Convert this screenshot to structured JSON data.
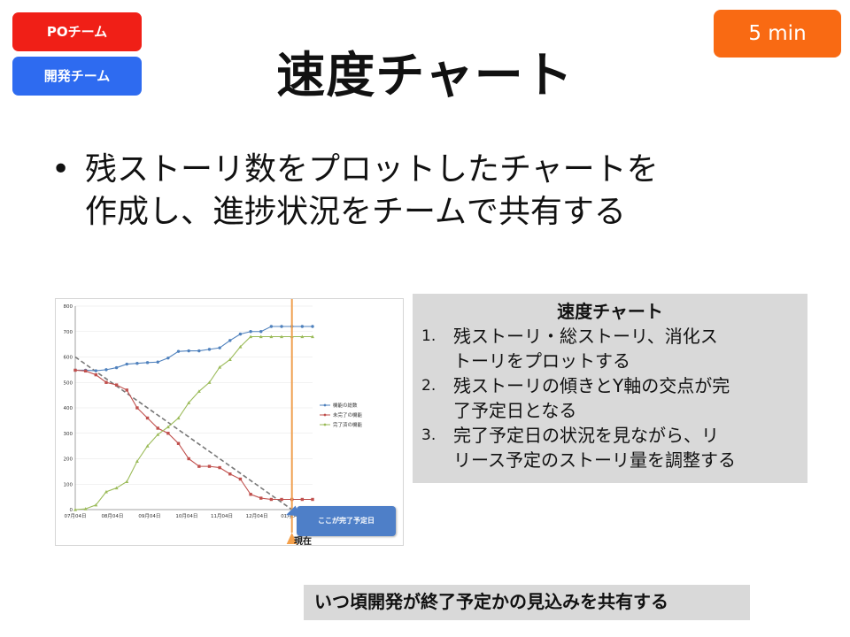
{
  "tags": {
    "po": "POチーム",
    "dev": "開発チーム"
  },
  "timer": "5 min",
  "title": "速度チャート",
  "bullet": {
    "line1": "残ストーリ数をプロットしたチャートを",
    "line2": "作成し、進捗状況をチームで共有する"
  },
  "info_box": {
    "title": "速度チャート",
    "items": [
      {
        "num": "1.",
        "line1": "残ストーリ・総ストーリ、消化ス",
        "line2": "トーリをプロットする"
      },
      {
        "num": "2.",
        "line1": "残ストーリの傾きとY軸の交点が完",
        "line2": "了予定日となる"
      },
      {
        "num": "3.",
        "line1": "完了予定日の状況を見ながら、リ",
        "line2": "リース予定のストーリ量を調整する"
      }
    ]
  },
  "bottom_note": "いつ頃開発が終了予定かの見込みを共有する",
  "callout": "ここが完了予定日",
  "now_label": "現在",
  "colors": {
    "po": "#f01f17",
    "dev": "#2e6bf0",
    "timer": "#f96a13",
    "now_line": "#f0a050"
  },
  "chart_data": {
    "type": "line",
    "ylim": [
      0,
      800
    ],
    "yticks": [
      "0",
      "100",
      "200",
      "300",
      "400",
      "500",
      "600",
      "700",
      "800"
    ],
    "xticks": [
      "07月04日",
      "08月04日",
      "09月04日",
      "10月04日",
      "11月04日",
      "12月04日",
      "01月04日"
    ],
    "xlim": [
      0,
      23
    ],
    "tick_positions": [
      0,
      3.6,
      7.2,
      10.8,
      14.2,
      17.6,
      21
    ],
    "now_x": 21,
    "series": [
      {
        "name": "機能の総数",
        "color": "#4f81bd",
        "marker": "circle",
        "x": [
          0,
          1,
          2,
          3,
          4,
          5,
          6,
          7,
          8,
          9,
          10,
          11,
          12,
          13,
          14,
          15,
          16,
          17,
          18,
          19,
          20,
          21,
          22,
          23
        ],
        "y": [
          548,
          548,
          546,
          550,
          558,
          572,
          575,
          578,
          580,
          596,
          622,
          624,
          624,
          630,
          636,
          665,
          690,
          700,
          700,
          720,
          720,
          720,
          720,
          720
        ]
      },
      {
        "name": "未完了の機能",
        "color": "#c0504d",
        "marker": "square",
        "x": [
          0,
          1,
          2,
          3,
          4,
          5,
          6,
          7,
          8,
          9,
          10,
          11,
          12,
          13,
          14,
          15,
          16,
          17,
          18,
          19,
          20,
          21,
          22,
          23
        ],
        "y": [
          548,
          545,
          530,
          500,
          490,
          470,
          400,
          360,
          320,
          300,
          260,
          200,
          170,
          170,
          165,
          140,
          120,
          60,
          45,
          40,
          40,
          40,
          40,
          40
        ]
      },
      {
        "name": "完了済の機能",
        "color": "#9bbb59",
        "marker": "triangle",
        "x": [
          0,
          1,
          2,
          3,
          4,
          5,
          6,
          7,
          8,
          9,
          10,
          11,
          12,
          13,
          14,
          15,
          16,
          17,
          18,
          19,
          20,
          21,
          22,
          23
        ],
        "y": [
          0,
          3,
          18,
          70,
          85,
          110,
          190,
          250,
          295,
          325,
          360,
          420,
          465,
          500,
          560,
          590,
          640,
          680,
          680,
          680,
          680,
          680,
          680,
          680
        ]
      }
    ],
    "trend": {
      "x": [
        0,
        21
      ],
      "y": [
        600,
        0
      ]
    }
  }
}
